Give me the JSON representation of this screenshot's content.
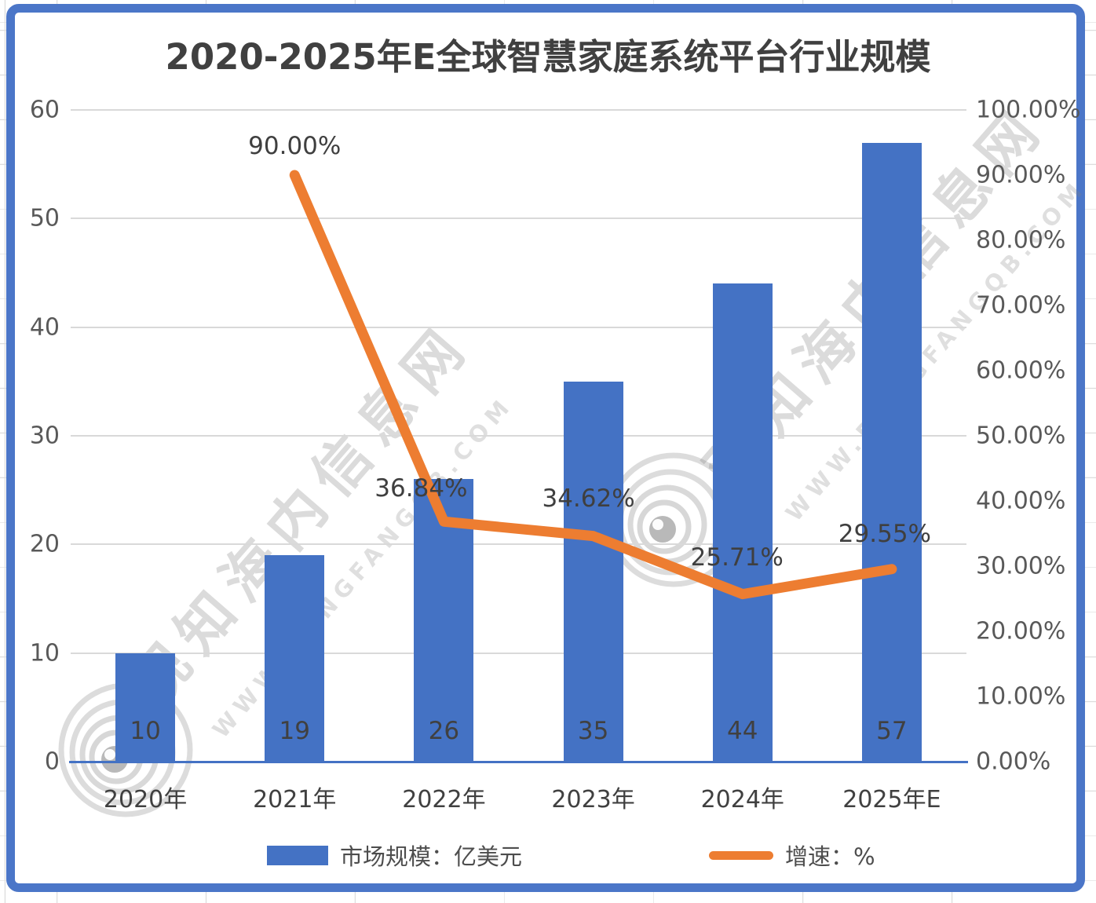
{
  "title": "2020-2025年E全球智慧家庭系统平台行业规模",
  "watermark": {
    "cn_text": "观知海内信息网",
    "url_text": "WWW.DONGFANGQB.COM"
  },
  "legend": [
    {
      "label": "市场规模：亿美元",
      "type": "bar",
      "color": "#4472C4"
    },
    {
      "label": "增速：%",
      "type": "line",
      "color": "#ED7D31"
    }
  ],
  "chart_data": {
    "type": "bar",
    "subtype": "combo bar+line, dual axis",
    "title": "2020-2025年E全球智慧家庭系统平台行业规模",
    "categories": [
      "2020年",
      "2021年",
      "2022年",
      "2023年",
      "2024年",
      "2025年E"
    ],
    "series": [
      {
        "name": "市场规模：亿美元",
        "type": "bar",
        "axis": "left",
        "color": "#4472C4",
        "values": [
          10,
          19,
          26,
          35,
          44,
          57
        ],
        "value_labels": [
          "10",
          "19",
          "26",
          "35",
          "44",
          "57"
        ]
      },
      {
        "name": "增速：%",
        "type": "line",
        "axis": "right",
        "color": "#ED7D31",
        "values": [
          null,
          90.0,
          36.84,
          34.62,
          25.71,
          29.55
        ],
        "value_labels": [
          "",
          "90.00%",
          "36.84%",
          "34.62%",
          "25.71%",
          "29.55%"
        ]
      }
    ],
    "left_axis": {
      "min": 0,
      "max": 60,
      "step": 10,
      "ticks": [
        "0",
        "10",
        "20",
        "30",
        "40",
        "50",
        "60"
      ]
    },
    "right_axis": {
      "min": 0,
      "max": 100,
      "step": 10,
      "ticks": [
        "0.00%",
        "10.00%",
        "20.00%",
        "30.00%",
        "40.00%",
        "50.00%",
        "60.00%",
        "70.00%",
        "80.00%",
        "90.00%",
        "100.00%"
      ]
    },
    "grid": "horizontal gridlines only",
    "legend_position": "bottom"
  }
}
